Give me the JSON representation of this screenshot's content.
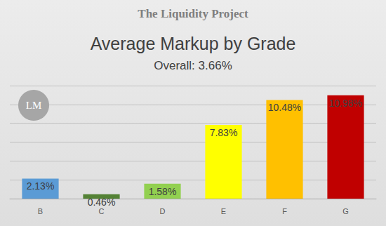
{
  "chart_data": {
    "type": "bar",
    "suptitle": "The Liquidity Project",
    "title": "Average Markup by Grade",
    "subtitle": "Overall: 3.66%",
    "annotation": "LM",
    "categories": [
      "B",
      "C",
      "D",
      "E",
      "F",
      "G"
    ],
    "values": [
      2.13,
      0.46,
      1.58,
      7.83,
      10.48,
      10.98
    ],
    "value_labels": [
      "2.13%",
      "0.46%",
      "1.58%",
      "7.83%",
      "10.48%",
      "10.98%"
    ],
    "colors": [
      "#5b9bd5",
      "#548235",
      "#92d050",
      "#ffff00",
      "#ffc000",
      "#c00000"
    ],
    "ylim": [
      0,
      12
    ],
    "yticks": [
      0,
      2,
      4,
      6,
      8,
      10,
      12
    ],
    "grid": true,
    "data_labels": true,
    "tick_labels": "x"
  }
}
